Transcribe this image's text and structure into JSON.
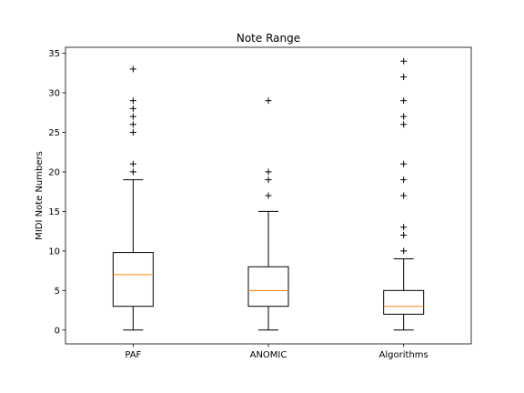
{
  "chart_data": {
    "type": "box",
    "title": "Note Range",
    "xlabel": "",
    "ylabel": "MIDI Note Numbers",
    "ylim": [
      -1.75,
      35.75
    ],
    "yticks": [
      0,
      5,
      10,
      15,
      20,
      25,
      30,
      35
    ],
    "grid": false,
    "colors": {
      "box": "#000000",
      "median": "#ff7f0e",
      "flier": "#000000"
    },
    "flier_marker": "+",
    "categories": [
      "PAF",
      "ANOMIC",
      "Algorithms"
    ],
    "boxes": [
      {
        "name": "PAF",
        "whisker_low": 0,
        "q1": 3,
        "median": 7,
        "q3": 9.8,
        "whisker_high": 19,
        "fliers": [
          20,
          21,
          25,
          26,
          27,
          28,
          29,
          33
        ]
      },
      {
        "name": "ANOMIC",
        "whisker_low": 0,
        "q1": 3,
        "median": 5,
        "q3": 8,
        "whisker_high": 15,
        "fliers": [
          17,
          19,
          20,
          29
        ]
      },
      {
        "name": "Algorithms",
        "whisker_low": 0,
        "q1": 2,
        "median": 3,
        "q3": 5,
        "whisker_high": 9,
        "fliers": [
          10,
          12,
          13,
          17,
          19,
          21,
          26,
          27,
          29,
          32,
          34
        ]
      }
    ]
  }
}
